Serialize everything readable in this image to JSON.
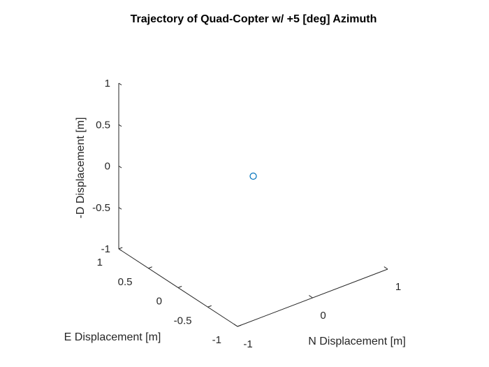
{
  "chart_data": {
    "type": "scatter",
    "title": "Trajectory of Quad-Copter w/ +5 [deg] Azimuth",
    "xlabel": "N Displacement [m]",
    "ylabel": "E Displacement [m]",
    "zlabel": "-D Displacement [m]",
    "xlim": [
      -1,
      1
    ],
    "ylim": [
      -1,
      1
    ],
    "zlim": [
      -1,
      1
    ],
    "x_ticks": [
      "-1",
      "0",
      "1"
    ],
    "y_ticks": [
      "-1",
      "-0.5",
      "0",
      "0.5",
      "1"
    ],
    "z_ticks": [
      "-1",
      "-0.5",
      "0",
      "0.5",
      "1"
    ],
    "x_tick_values": [
      -1,
      0,
      1
    ],
    "y_tick_values": [
      -1,
      -0.5,
      0,
      0.5,
      1
    ],
    "z_tick_values": [
      -1,
      -0.5,
      0,
      0.5,
      1
    ],
    "grid": false,
    "marker": "circle",
    "color": "#0072BD",
    "points": [
      {
        "x": 0,
        "y": 0,
        "z": 0
      }
    ]
  }
}
